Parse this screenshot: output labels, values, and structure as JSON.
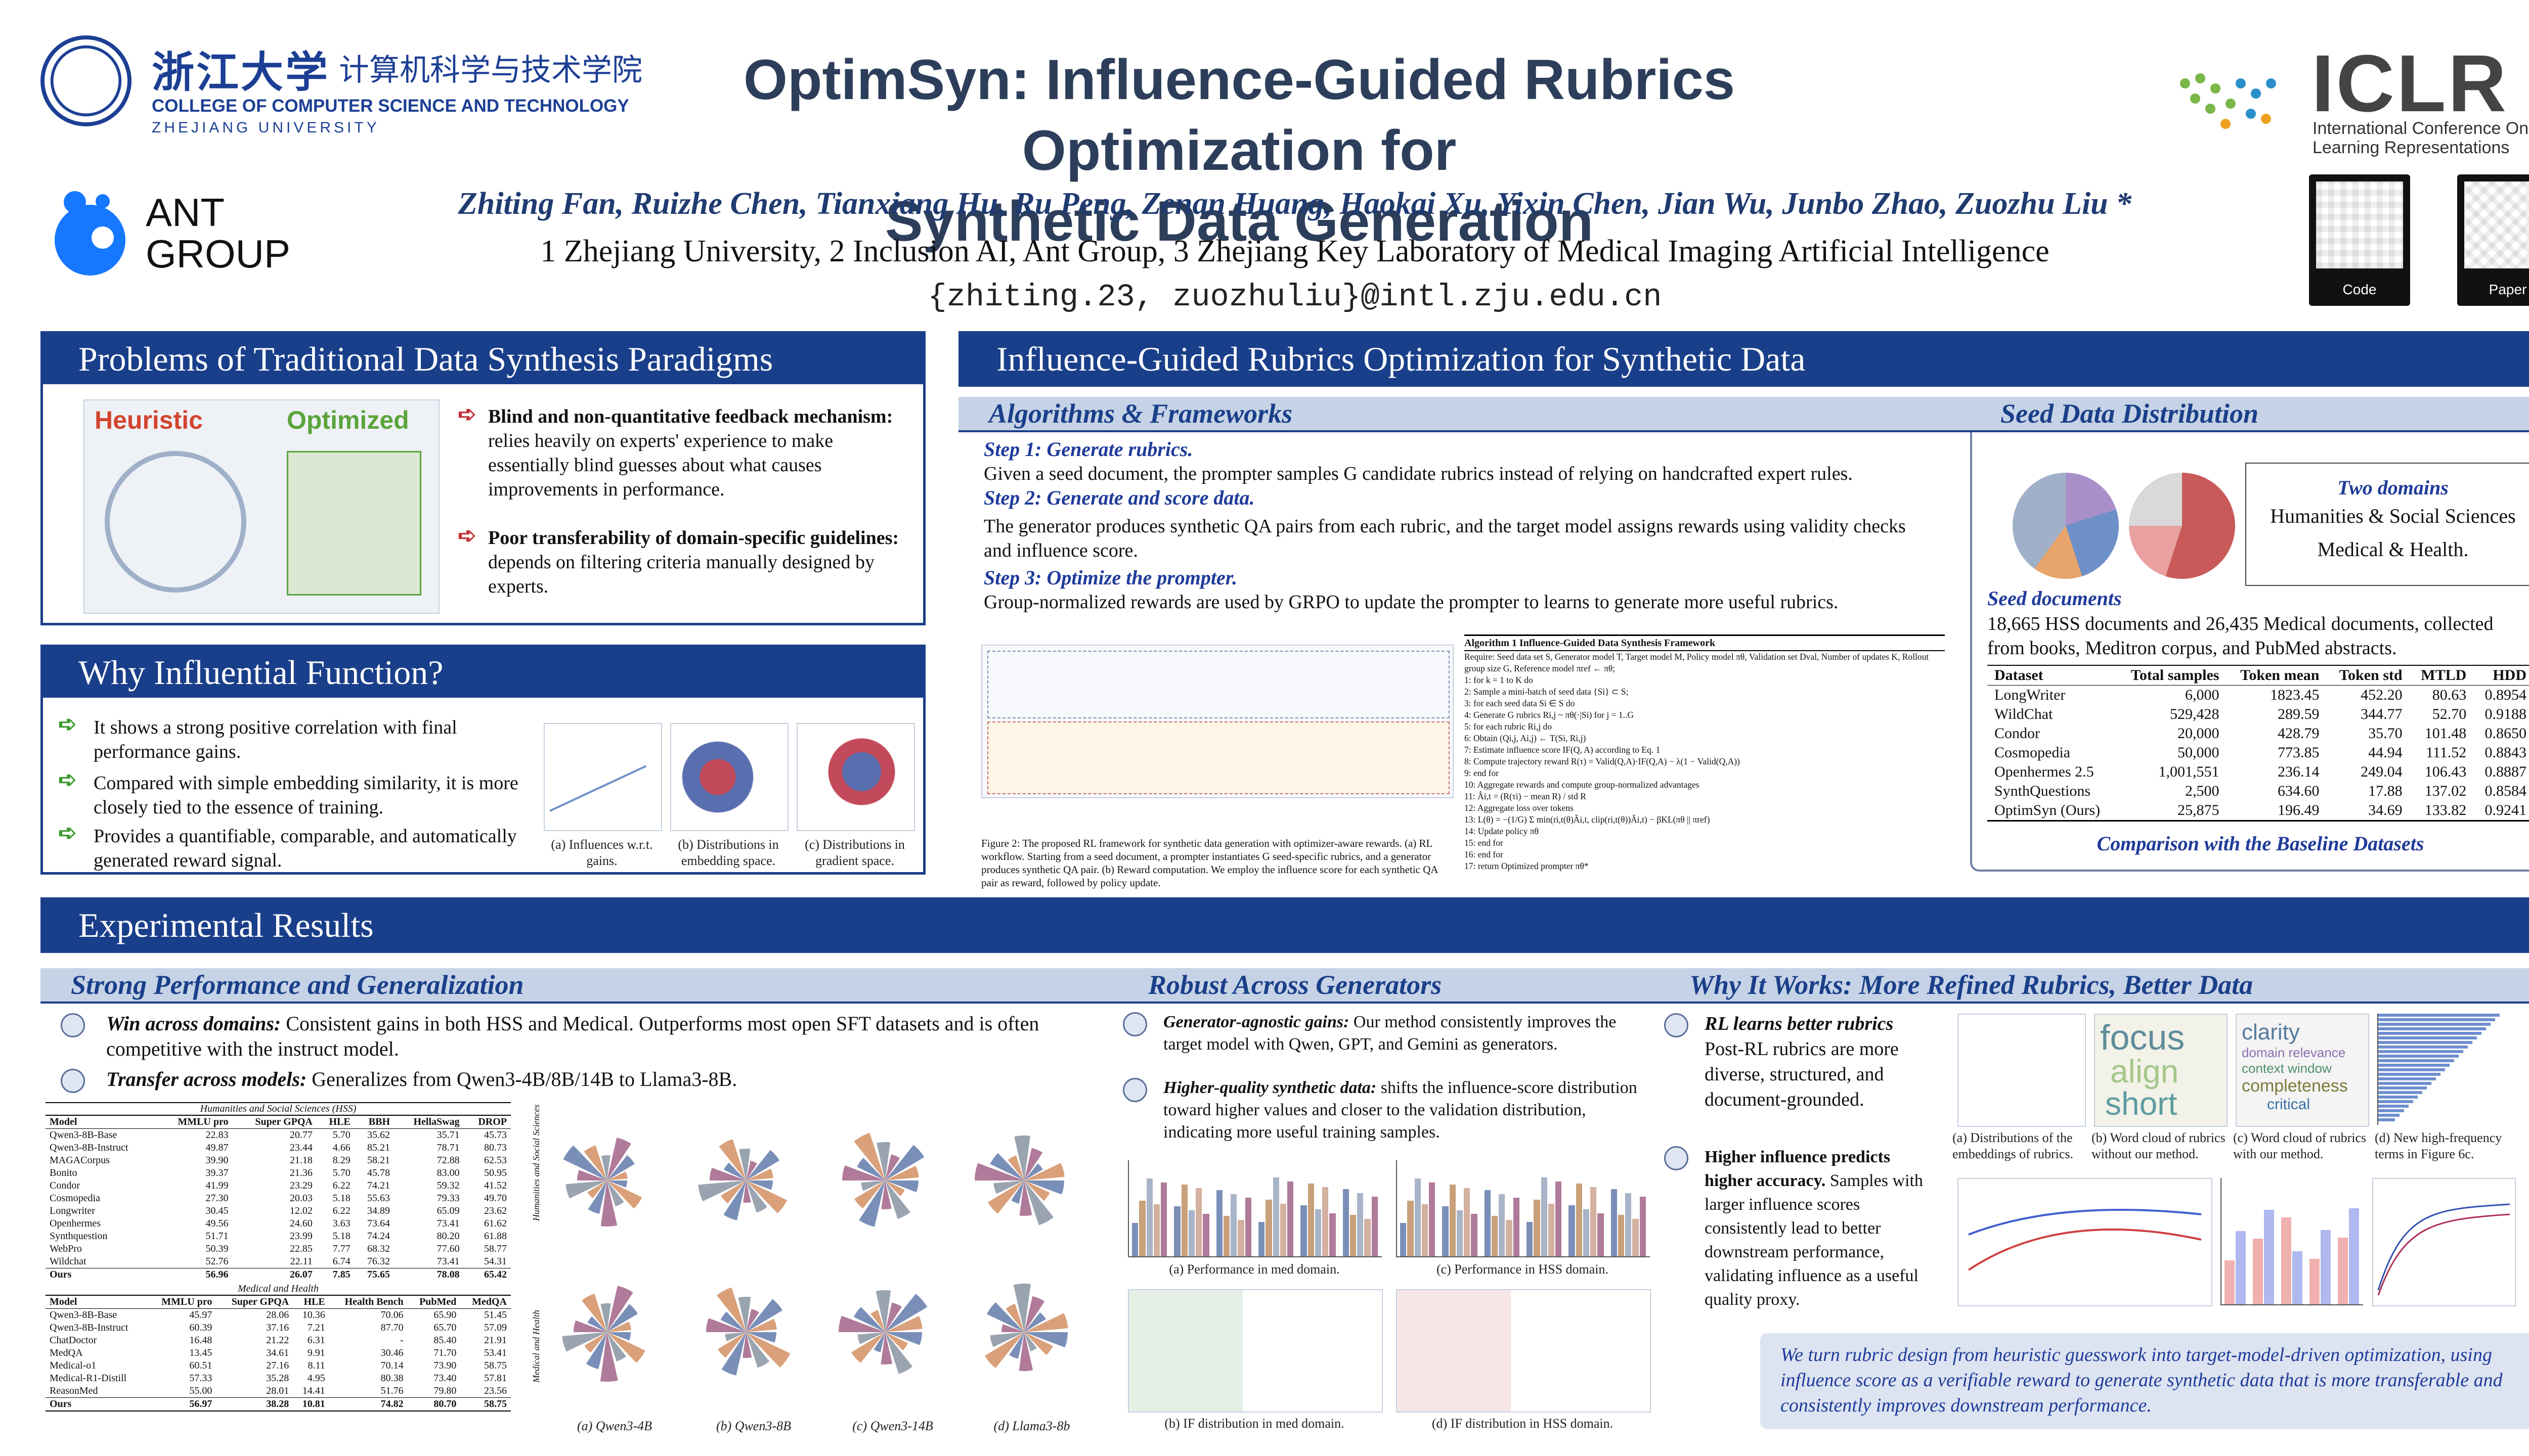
{
  "header": {
    "zju_logo_text": "浙江大学",
    "zju_college_cn": "计算机科学与技术学院",
    "zju_college_en": "COLLEGE OF COMPUTER SCIENCE AND TECHNOLOGY",
    "zju_en": "ZHEJIANG UNIVERSITY",
    "ant_line1": "ANT",
    "ant_line2": "GROUP",
    "title_line1": "OptimSyn: Influence-Guided Rubrics Optimization for",
    "title_line2": "Synthetic Data Generation",
    "authors": "Zhiting Fan, Ruizhe Chen, Tianxiang Hu, Ru Peng, Zenan Huang, Haokai Xu, Yixin Chen, Jian Wu, Junbo Zhao, Zuozhu Liu *",
    "affiliations": "1 Zhejiang University, 2 Inclusion AI, Ant Group, 3 Zhejiang Key Laboratory of Medical Imaging Artificial Intelligence",
    "email": "{zhiting.23, zuozhuliu}@intl.zju.edu.cn",
    "iclr_name": "ICLR",
    "iclr_full": "International Conference On Learning Representations",
    "qr_code_label": "Code",
    "qr_paper_label": "Paper"
  },
  "problems": {
    "title": "Problems of Traditional Data Synthesis Paradigms",
    "fig_heuristic": "Heuristic",
    "fig_optimized": "Optimized",
    "items": [
      {
        "head": "Blind and non-quantitative feedback mechanism:",
        "body": "relies heavily on experts' experience to make essentially blind guesses about what causes improvements in performance."
      },
      {
        "head": "Poor transferability of domain-specific guidelines:",
        "body": "depends on filtering criteria manually designed by experts."
      }
    ]
  },
  "influential": {
    "title": "Why Influential Function?",
    "items": [
      "It shows a strong positive correlation with final performance gains.",
      "Compared with simple embedding similarity, it is more closely tied to the essence of training.",
      "Provides a quantifiable, comparable, and automatically generated reward signal."
    ],
    "captions": [
      "(a) Influences w.r.t. gains.",
      "(b) Distributions in embedding space.",
      "(c) Distributions in gradient space."
    ]
  },
  "method": {
    "title": "Influence-Guided Rubrics Optimization for Synthetic Data",
    "algo_title": "Algorithms & Frameworks",
    "steps": [
      {
        "label": "Step 1: Generate rubrics.",
        "body": "Given a seed document, the prompter samples G candidate rubrics instead of relying on handcrafted expert rules."
      },
      {
        "label": "Step 2: Generate and score data.",
        "body": "The generator produces synthetic QA pairs from each rubric, and the target model assigns rewards using validity checks and influence score."
      },
      {
        "label": "Step 3: Optimize the prompter.",
        "body": "Group-normalized rewards are used by GRPO to update the prompter to learns to generate more useful rubrics."
      }
    ],
    "figure_caption": "Figure 2: The proposed RL framework for synthetic data generation with optimizer-aware rewards. (a) RL workflow. Starting from a seed document, a prompter instantiates G seed-specific rubrics, and a generator produces synthetic QA pair. (b) Reward computation. We employ the influence score for each synthetic QA pair as reward, followed by policy update.",
    "algorithm_title": "Algorithm 1 Influence-Guided Data Synthesis Framework",
    "algorithm_lines": [
      "Require: Seed data set S, Generator model T, Target model M, Policy model πθ, Validation set Dval, Number of updates K, Rollout group size G, Reference model πref ← πθ;",
      "1: for k = 1 to K do",
      "2:   Sample a mini-batch of seed data {Si} ⊂ S;",
      "3:   for each seed data Si ∈ S do",
      "4:     Generate G rubrics Ri,j ~ πθ(·|Si) for j = 1..G",
      "5:     for each rubric Ri,j do",
      "6:       Obtain (Qi,j, Ai,j) ← T(Si, Ri,j)",
      "7:       Estimate influence score IF(Q, A) according to Eq. 1",
      "8:       Compute trajectory reward R(τ) = Valid(Q,A)·IF(Q,A) − λ(1 − Valid(Q,A))",
      "9:     end for",
      "10:    Aggregate rewards and compute group-normalized advantages",
      "11:    Âi,t = (R(τi) − mean R) / std R",
      "12:    Aggregate loss over tokens",
      "13:    L(θ) = −(1/G) Σ min(ri,t(θ)Âi,t, clip(ri,t(θ))Âi,t) − βKL(πθ || πref)",
      "14:    Update policy πθ",
      "15:  end for",
      "16: end for",
      "17: return Optimized prompter πθ*"
    ],
    "seed_title": "Seed Data Distribution",
    "domains_title": "Two domains",
    "domains_body": "Humanities & Social Sciences Medical & Health.",
    "seed_docs_title": "Seed documents",
    "seed_docs_body": "18,665 HSS documents and 26,435 Medical documents, collected from books, Meditron corpus, and PubMed abstracts.",
    "comparison_caption": "Comparison with the Baseline Datasets",
    "dataset_table": {
      "headers": [
        "Dataset",
        "Total samples",
        "Token mean",
        "Token std",
        "MTLD",
        "HDD"
      ],
      "rows": [
        [
          "LongWriter",
          "6,000",
          "1823.45",
          "452.20",
          "80.63",
          "0.8954"
        ],
        [
          "WildChat",
          "529,428",
          "289.59",
          "344.77",
          "52.70",
          "0.9188"
        ],
        [
          "Condor",
          "20,000",
          "428.79",
          "35.70",
          "101.48",
          "0.8650"
        ],
        [
          "Cosmopedia",
          "50,000",
          "773.85",
          "44.94",
          "111.52",
          "0.8843"
        ],
        [
          "Openhermes 2.5",
          "1,001,551",
          "236.14",
          "249.04",
          "106.43",
          "0.8887"
        ],
        [
          "SynthQuestions",
          "2,500",
          "634.60",
          "17.88",
          "137.02",
          "0.8584"
        ],
        [
          "OptimSyn (Ours)",
          "25,875",
          "196.49",
          "34.69",
          "133.82",
          "0.9241"
        ]
      ]
    }
  },
  "results": {
    "title": "Experimental Results",
    "strong_title": "Strong Performance and Generalization",
    "strong_items": [
      {
        "head": "Win across domains:",
        "body": "Consistent gains in both HSS and Medical. Outperforms most open SFT datasets and is often competitive with the instruct model."
      },
      {
        "head": "Transfer across models:",
        "body": "Generalizes from Qwen3-4B/8B/14B to Llama3-8B."
      }
    ],
    "hss_table": {
      "title": "Humanities and Social Sciences (HSS)",
      "headers": [
        "Model",
        "MMLU pro",
        "Super GPQA",
        "HLE",
        "BBH",
        "HellaSwag",
        "DROP"
      ],
      "rows": [
        [
          "Qwen3-8B-Base",
          "22.83",
          "20.77",
          "5.70",
          "35.62",
          "35.71",
          "45.73"
        ],
        [
          "Qwen3-8B-Instruct",
          "49.87",
          "23.44",
          "4.66",
          "85.21",
          "78.71",
          "80.73"
        ],
        [
          "MAGACorpus",
          "39.90",
          "21.18",
          "8.29",
          "58.21",
          "72.88",
          "62.53"
        ],
        [
          "Bonito",
          "39.37",
          "21.36",
          "5.70",
          "45.78",
          "83.00",
          "50.95"
        ],
        [
          "Condor",
          "41.99",
          "23.29",
          "6.22",
          "74.21",
          "59.32",
          "41.52"
        ],
        [
          "Cosmopedia",
          "27.30",
          "20.03",
          "5.18",
          "55.63",
          "79.33",
          "49.70"
        ],
        [
          "Longwriter",
          "30.45",
          "12.02",
          "6.22",
          "34.89",
          "65.09",
          "23.62"
        ],
        [
          "Openhermes",
          "49.56",
          "24.60",
          "3.63",
          "73.64",
          "73.41",
          "61.62"
        ],
        [
          "Synthquestion",
          "51.71",
          "23.99",
          "5.18",
          "74.24",
          "80.20",
          "61.88"
        ],
        [
          "WebPro",
          "50.39",
          "22.85",
          "7.77",
          "68.32",
          "77.60",
          "58.77"
        ],
        [
          "Wildchat",
          "52.76",
          "22.11",
          "6.74",
          "76.32",
          "73.41",
          "54.31"
        ],
        [
          "Ours",
          "56.96",
          "26.07",
          "7.85",
          "75.65",
          "78.08",
          "65.42"
        ]
      ]
    },
    "med_table": {
      "title": "Medical and Health",
      "headers": [
        "Model",
        "MMLU pro",
        "Super GPQA",
        "HLE",
        "Health Bench",
        "PubMed",
        "MedQA"
      ],
      "rows": [
        [
          "Qwen3-8B-Base",
          "45.97",
          "28.06",
          "10.36",
          "70.06",
          "65.90",
          "51.45"
        ],
        [
          "Qwen3-8B-Instruct",
          "60.39",
          "37.16",
          "7.21",
          "87.70",
          "65.70",
          "57.09"
        ],
        [
          "ChatDoctor",
          "16.48",
          "21.22",
          "6.31",
          "-",
          "85.40",
          "21.91"
        ],
        [
          "MedQA",
          "13.45",
          "34.61",
          "9.91",
          "30.46",
          "71.70",
          "53.41"
        ],
        [
          "Medical-o1",
          "60.51",
          "27.16",
          "8.11",
          "70.14",
          "73.90",
          "58.75"
        ],
        [
          "Medical-R1-Distill",
          "57.33",
          "35.28",
          "4.95",
          "80.38",
          "73.40",
          "57.81"
        ],
        [
          "ReasonMed",
          "55.00",
          "28.01",
          "14.41",
          "51.76",
          "79.80",
          "23.56"
        ],
        [
          "Ours",
          "56.97",
          "38.28",
          "10.81",
          "74.82",
          "80.70",
          "58.75"
        ]
      ]
    },
    "radar_captions": [
      "(a) Qwen3-4B",
      "(b) Qwen3-8B",
      "(c) Qwen3-14B",
      "(d) Llama3-8b"
    ],
    "radar_side_labels": [
      "Humanities and Social Sciences",
      "Medical and Health"
    ],
    "robust_title": "Robust Across Generators",
    "robust_items": [
      {
        "head": "Generator-agnostic gains:",
        "body": "Our method consistently improves the target model with Qwen, GPT, and Gemini as generators."
      },
      {
        "head": "Higher-quality synthetic data:",
        "body": "shifts the influence-score distribution toward higher values and closer to the validation distribution, indicating more useful training samples."
      }
    ],
    "robust_captions": [
      "(a) Performance in med domain.",
      "(c) Performance in HSS domain.",
      "(b) IF distribution in med domain.",
      "(d) IF distribution in HSS domain."
    ],
    "why_title": "Why It Works: More Refined Rubrics, Better Data",
    "why_items": [
      {
        "head": "RL learns better rubrics",
        "body": "Post-RL rubrics are more diverse, structured, and document-grounded."
      },
      {
        "head": "Higher influence predicts higher accuracy.",
        "body": "Samples with larger influence scores consistently lead to better downstream performance, validating influence as a useful quality proxy."
      }
    ],
    "why_captions": [
      "(a) Distributions of the embeddings of rubrics.",
      "(b) Word cloud of rubrics without our method.",
      "(c) Word cloud of rubrics with our method.",
      "(d) New high-frequency terms in Figure 6c."
    ],
    "wordcloud_words": [
      "focus",
      "align",
      "short",
      "clarity",
      "domain relevance",
      "context window",
      "completeness",
      "critical"
    ],
    "conclusion": "We turn rubric design from heuristic guesswork into target-model-driven optimization, using influence score as a verifiable reward to generate synthetic data that is more transferable and consistently improves downstream performance."
  }
}
